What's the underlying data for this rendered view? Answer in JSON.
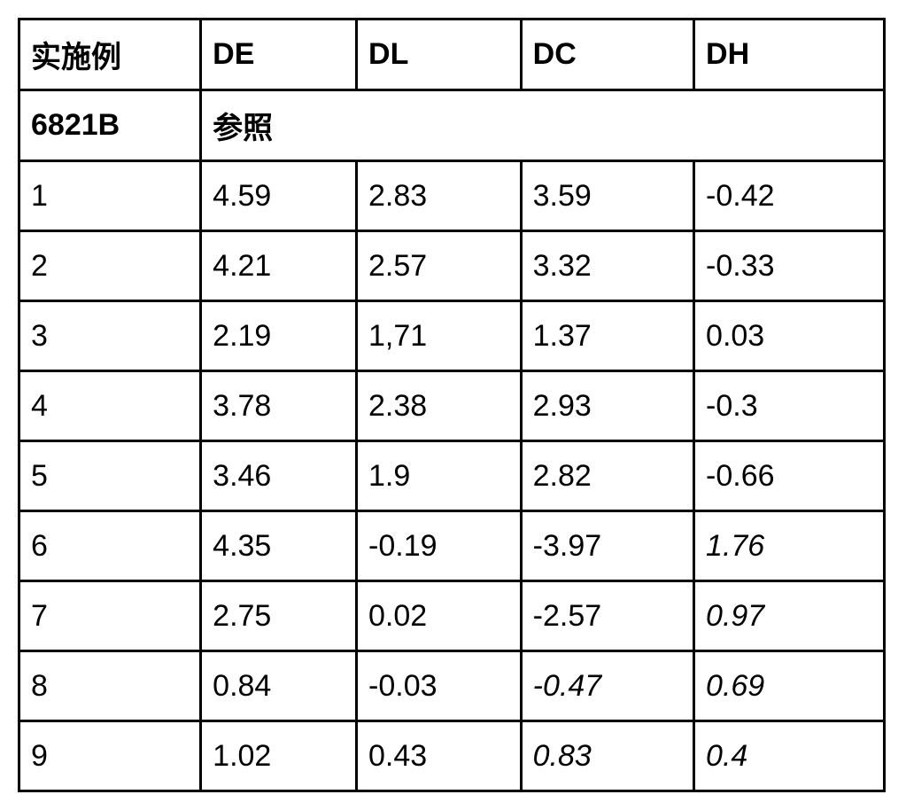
{
  "table": {
    "columns": [
      "实施例",
      "DE",
      "DL",
      "DC",
      "DH"
    ],
    "reference_row": {
      "label": "6821B",
      "merged_text": "参照"
    },
    "rows": [
      {
        "id": "1",
        "de": "4.59",
        "dl": "2.83",
        "dc": "3.59",
        "dh": "-0.42",
        "dc_italic": false,
        "dh_italic": false
      },
      {
        "id": "2",
        "de": "4.21",
        "dl": "2.57",
        "dc": "3.32",
        "dh": "-0.33",
        "dc_italic": false,
        "dh_italic": false
      },
      {
        "id": "3",
        "de": "2.19",
        "dl": "1,71",
        "dc": "1.37",
        "dh": "0.03",
        "dc_italic": false,
        "dh_italic": false
      },
      {
        "id": "4",
        "de": "3.78",
        "dl": "2.38",
        "dc": "2.93",
        "dh": "-0.3",
        "dc_italic": false,
        "dh_italic": false
      },
      {
        "id": "5",
        "de": "3.46",
        "dl": "1.9",
        "dc": "2.82",
        "dh": "-0.66",
        "dc_italic": false,
        "dh_italic": false
      },
      {
        "id": "6",
        "de": "4.35",
        "dl": "-0.19",
        "dc": "-3.97",
        "dh": "1.76",
        "dc_italic": false,
        "dh_italic": true
      },
      {
        "id": "7",
        "de": "2.75",
        "dl": "0.02",
        "dc": "-2.57",
        "dh": "0.97",
        "dc_italic": false,
        "dh_italic": true
      },
      {
        "id": "8",
        "de": "0.84",
        "dl": "-0.03",
        "dc": "-0.47",
        "dh": "0.69",
        "dc_italic": true,
        "dh_italic": true
      },
      {
        "id": "9",
        "de": "1.02",
        "dl": "0.43",
        "dc": "0.83",
        "dh": "0.4",
        "dc_italic": true,
        "dh_italic": true
      }
    ],
    "border_color": "#000000",
    "background_color": "#ffffff",
    "font_size_pt": 26,
    "col_widths_pct": [
      21,
      18,
      19,
      20,
      22
    ]
  }
}
